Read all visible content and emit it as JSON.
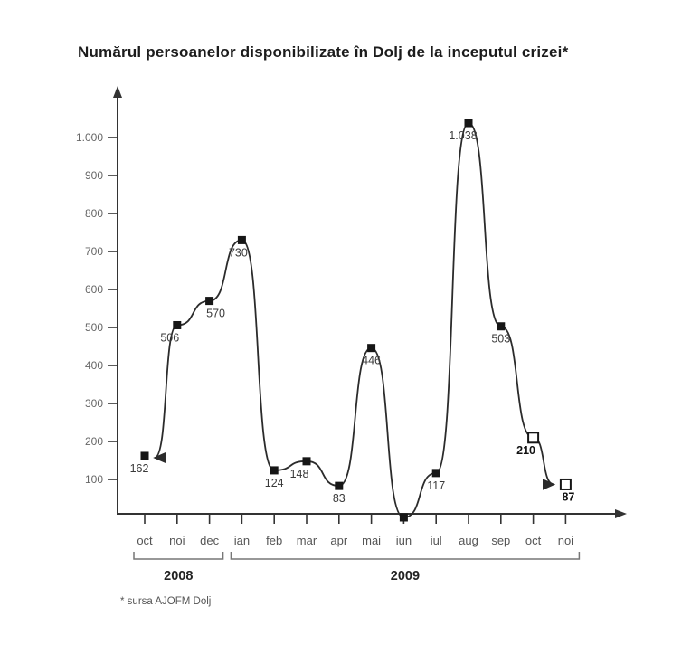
{
  "page": {
    "title": "Numărul persoanelor disponibilizate în Dolj de la inceputul crizei*",
    "footnote": "* sursa AJOFM Dolj"
  },
  "chart_data": {
    "type": "line",
    "title": "Numărul persoanelor disponibilizate în Dolj de la inceputul crizei*",
    "footnote": "* sursa AJOFM Dolj",
    "categories": [
      "oct",
      "noi",
      "dec",
      "ian",
      "feb",
      "mar",
      "apr",
      "mai",
      "iun",
      "iul",
      "aug",
      "sep",
      "oct",
      "noi"
    ],
    "values": [
      162,
      506,
      570,
      730,
      124,
      148,
      83,
      446,
      0,
      117,
      1038,
      503,
      210,
      87
    ],
    "point_labels": [
      "162",
      "506",
      "570",
      "730",
      "124",
      "148",
      "83",
      "446",
      "",
      "117",
      "1.038",
      "503",
      "210",
      "87"
    ],
    "marker_styles": [
      "filled",
      "filled",
      "filled",
      "filled",
      "filled",
      "filled",
      "filled",
      "filled",
      "filled",
      "filled",
      "filled",
      "filled",
      "open",
      "open"
    ],
    "ytick_values": [
      100,
      200,
      300,
      400,
      500,
      600,
      700,
      800,
      900,
      1000
    ],
    "ytick_labels": [
      "100",
      "200",
      "300",
      "400",
      "500",
      "600",
      "700",
      "800",
      "900",
      "1.000"
    ],
    "ylim": [
      0,
      1100
    ],
    "grid": false,
    "legend": false,
    "line_endpoints_have_arrows": true,
    "year_groups": [
      {
        "label": "2008",
        "from": 0,
        "to": 2
      },
      {
        "label": "2009",
        "from": 3,
        "to": 13
      }
    ],
    "colors": {
      "line": "#2b2b2b",
      "axis": "#333333",
      "marker": "#161616",
      "tick_label": "#666666",
      "month_label": "#555555",
      "data_label": "#3a3a3a",
      "estimated_label": "#111111",
      "bracket": "#777777",
      "year_label": "#222222"
    }
  }
}
